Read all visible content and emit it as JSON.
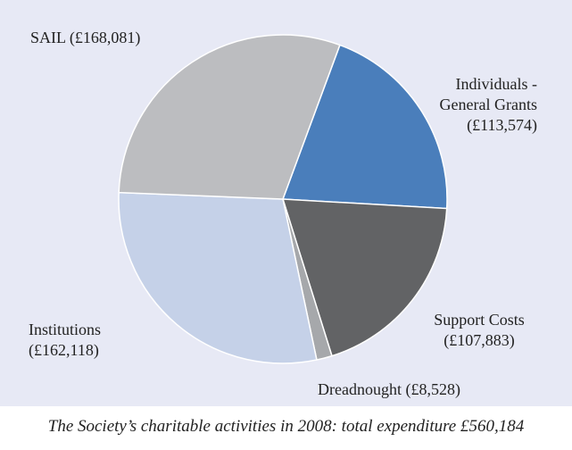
{
  "chart_data": {
    "type": "pie",
    "title": "The Society’s charitable activities in 2008: total expenditure £560,184",
    "slices": [
      {
        "name": "Individuals - General Grants",
        "label_lines": [
          "Individuals -",
          "General Grants",
          "(£113,574)"
        ],
        "value": 113574,
        "color": "#4a7ebb"
      },
      {
        "name": "Support Costs",
        "label_lines": [
          "Support Costs",
          "(£107,883)"
        ],
        "value": 107883,
        "color": "#626365"
      },
      {
        "name": "Dreadnought",
        "label_lines": [
          "Dreadnought (£8,528)"
        ],
        "value": 8528,
        "color": "#a6a8ab"
      },
      {
        "name": "Institutions",
        "label_lines": [
          "Institutions",
          "(£162,118)"
        ],
        "value": 162118,
        "color": "#c5d1e8"
      },
      {
        "name": "SAIL",
        "label_lines": [
          "SAIL (£168,081)"
        ],
        "value": 168081,
        "color": "#bcbdc0"
      }
    ]
  }
}
